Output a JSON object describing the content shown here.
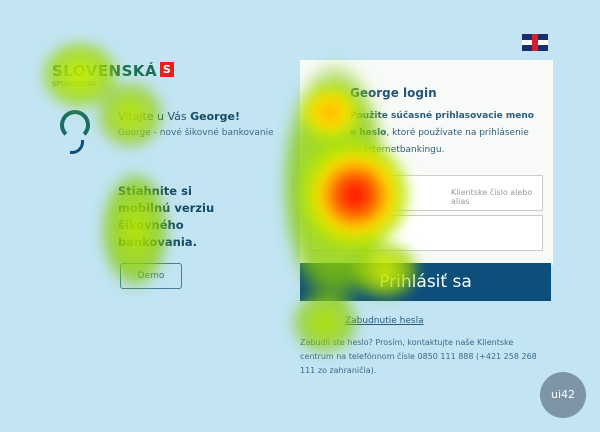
{
  "brand": {
    "name": "SLOVENSKÁ",
    "sub": "SPORITEĽŇA",
    "logo_letter": "S"
  },
  "left": {
    "welcome_prefix": "Vitajte u Vás ",
    "welcome_name": "George!",
    "welcome_sub": "George - nové šikovné bankovanie",
    "promo": "Stiahnite si mobilnú verziu šikovného bankovania.",
    "demo_button": "Demo"
  },
  "language": {
    "flag": "uk-flag-icon"
  },
  "login": {
    "title": "George login",
    "desc_bold": "Použite súčasné prihlasovacie meno a heslo",
    "desc_rest": ", ktoré používate na prihlásenie do Internetbankingu.",
    "username_placeholder": "Klientske číslo alebo alias",
    "password_placeholder": "",
    "submit": "Prihlásiť sa",
    "forgot": "Zabudnutie hesla",
    "help": "Zabudli ste heslo? Prosím, kontaktujte naše Klientske centrum na telefónnom čísle 0850 111 888 (+421 258 268 111 zo zahraničia)."
  },
  "badge": "ui42",
  "heatmap": {
    "colors": {
      "low": "#a8e000",
      "mid": "#ffe000",
      "high": "#ff0000"
    }
  }
}
